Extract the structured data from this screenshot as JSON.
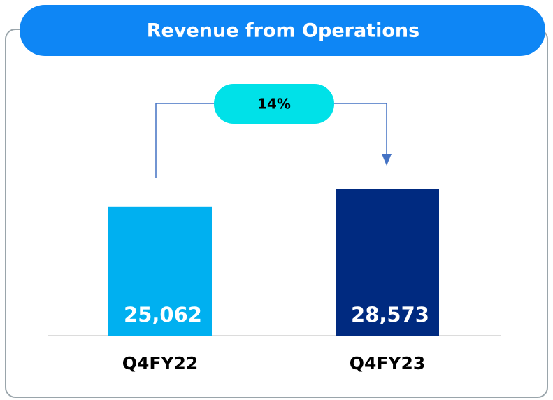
{
  "chart_data": {
    "type": "bar",
    "title": "Revenue from Operations",
    "categories": [
      "Q4FY22",
      "Q4FY23"
    ],
    "values": [
      25062,
      28573
    ],
    "value_labels": [
      "25,062",
      "28,573"
    ],
    "colors": [
      "#00b0f0",
      "#002a80"
    ],
    "annotation": "14%"
  }
}
